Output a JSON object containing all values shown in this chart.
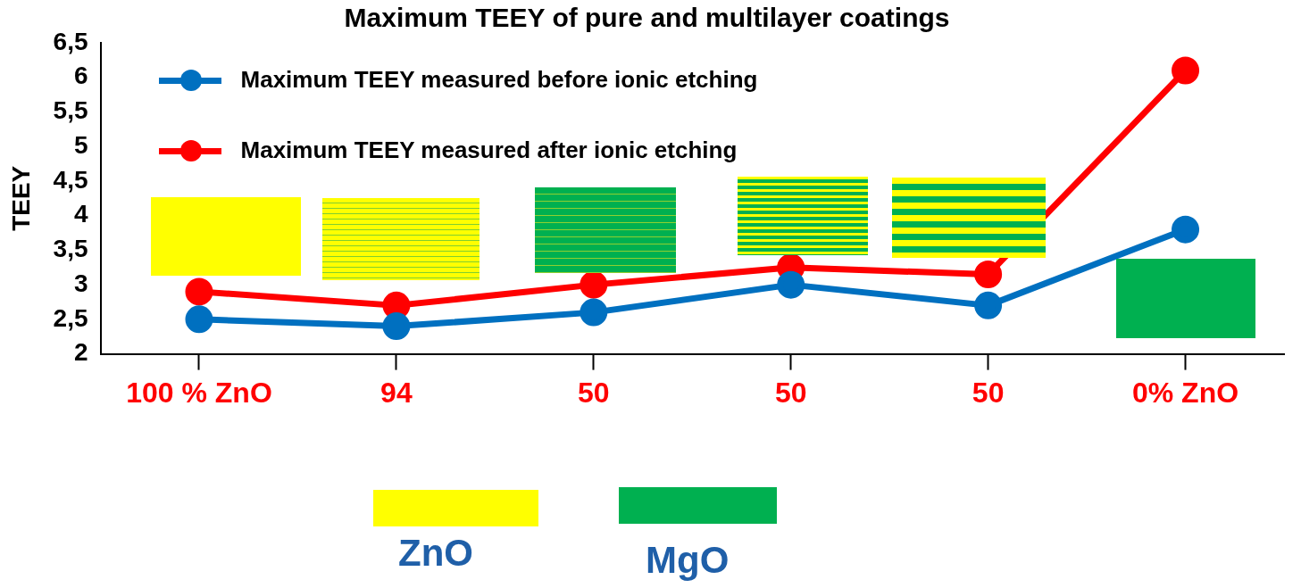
{
  "chart_data": {
    "type": "line",
    "title": "Maximum TEEY of pure and multilayer coatings",
    "ylabel": "TEEY",
    "categories": [
      "100 % ZnO",
      "94",
      "50",
      "50",
      "50",
      "0% ZnO"
    ],
    "series": [
      {
        "name": "Maximum TEEY measured before ionic etching",
        "color": "#0070c0",
        "values": [
          2.5,
          2.4,
          2.6,
          3.0,
          2.7,
          3.8
        ]
      },
      {
        "name": "Maximum TEEY measured after ionic etching",
        "color": "#ff0000",
        "values": [
          2.9,
          2.7,
          3.0,
          3.25,
          3.15,
          6.1
        ]
      }
    ],
    "ylim": [
      2,
      6.5
    ],
    "yticks": [
      2,
      {
        "value": 2.5,
        "label": "2,5"
      },
      3,
      {
        "value": 3.5,
        "label": "3,5"
      },
      4,
      {
        "value": 4.5,
        "label": "4,5"
      },
      5,
      {
        "value": 5.5,
        "label": "5,5"
      },
      6,
      {
        "value": 6.5,
        "label": "6,5"
      }
    ],
    "annotations": [
      "ZnO",
      "MgO"
    ],
    "grid": false,
    "legend": "top left",
    "marker": "circle",
    "line_style": "solid"
  }
}
